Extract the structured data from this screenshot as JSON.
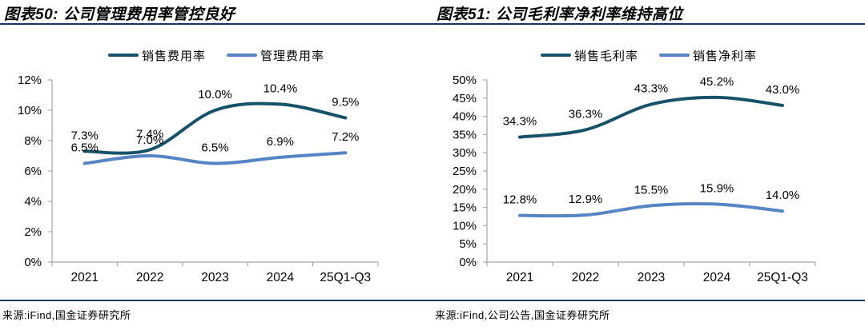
{
  "colors": {
    "rule_navy": "#17375E",
    "series_dark": "#175368",
    "series_light": "#5585C5",
    "axis_gray": "#A6A6A6",
    "label_black": "#000000"
  },
  "panels": [
    {
      "title": "图表50: 公司管理费用率管控良好",
      "source": "来源:iFind,国金证券研究所"
    },
    {
      "title": "图表51: 公司毛利率净利率维持高位",
      "source": "来源:iFind,公司公告,国金证券研究所"
    }
  ],
  "chart_data": [
    {
      "type": "line",
      "title": "图表50: 公司管理费用率管控良好",
      "smooth": true,
      "grid": false,
      "legend_position": "top",
      "categories": [
        "2021",
        "2022",
        "2023",
        "2024",
        "25Q1-Q3"
      ],
      "series": [
        {
          "name": "销售费用率",
          "color": "dark",
          "values": [
            7.3,
            7.4,
            10.0,
            10.4,
            9.5
          ],
          "labels": [
            "7.3%",
            "7.4%",
            "10.0%",
            "10.4%",
            "9.5%"
          ]
        },
        {
          "name": "管理费用率",
          "color": "light",
          "values": [
            6.5,
            7.0,
            6.5,
            6.9,
            7.2
          ],
          "labels": [
            "6.5%",
            "7.0%",
            "6.5%",
            "6.9%",
            "7.2%"
          ]
        }
      ],
      "ylim": [
        0,
        12
      ],
      "ytick_step": 2,
      "ytick_labels": [
        "0%",
        "2%",
        "4%",
        "6%",
        "8%",
        "10%",
        "12%"
      ]
    },
    {
      "type": "line",
      "title": "图表51: 公司毛利率净利率维持高位",
      "smooth": true,
      "grid": false,
      "legend_position": "top",
      "categories": [
        "2021",
        "2022",
        "2023",
        "2024",
        "25Q1-Q3"
      ],
      "series": [
        {
          "name": "销售毛利率",
          "color": "dark",
          "values": [
            34.3,
            36.3,
            43.3,
            45.2,
            43.0
          ],
          "labels": [
            "34.3%",
            "36.3%",
            "43.3%",
            "45.2%",
            "43.0%"
          ]
        },
        {
          "name": "销售净利率",
          "color": "light",
          "values": [
            12.8,
            12.9,
            15.5,
            15.9,
            14.0
          ],
          "labels": [
            "12.8%",
            "12.9%",
            "15.5%",
            "15.9%",
            "14.0%"
          ]
        }
      ],
      "ylim": [
        0,
        50
      ],
      "ytick_step": 5,
      "ytick_labels": [
        "0%",
        "5%",
        "10%",
        "15%",
        "20%",
        "25%",
        "30%",
        "35%",
        "40%",
        "45%",
        "50%"
      ]
    }
  ]
}
